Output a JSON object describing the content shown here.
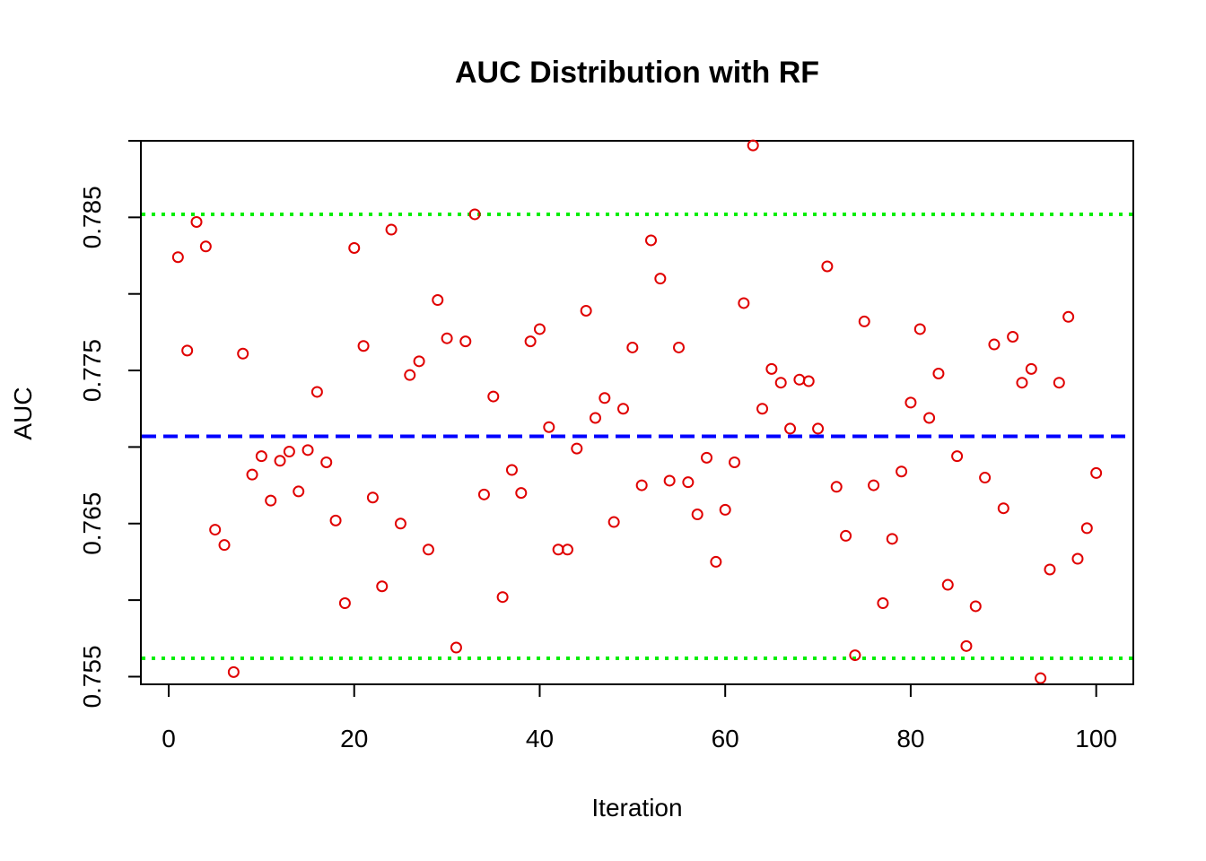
{
  "chart_data": {
    "type": "scatter",
    "title": "AUC Distribution with RF",
    "xlabel": "Iteration",
    "ylabel": "AUC",
    "xlim": [
      -3,
      104
    ],
    "ylim": [
      0.7545,
      0.79
    ],
    "xticks": [
      0,
      20,
      40,
      60,
      80,
      100
    ],
    "xtick_labels": [
      "0",
      "20",
      "40",
      "60",
      "80",
      "100"
    ],
    "yticks": [
      0.755,
      0.76,
      0.765,
      0.77,
      0.775,
      0.78,
      0.785,
      0.79
    ],
    "ytick_labels": [
      "0.755",
      "",
      "0.765",
      "",
      "0.775",
      "",
      "0.785",
      ""
    ],
    "grid": false,
    "point_color": "#e00000",
    "x": [
      1,
      2,
      3,
      4,
      5,
      6,
      7,
      8,
      9,
      10,
      11,
      12,
      13,
      14,
      15,
      16,
      17,
      18,
      19,
      20,
      21,
      22,
      23,
      24,
      25,
      26,
      27,
      28,
      29,
      30,
      31,
      32,
      33,
      34,
      35,
      36,
      37,
      38,
      39,
      40,
      41,
      42,
      43,
      44,
      45,
      46,
      47,
      48,
      49,
      50,
      51,
      52,
      53,
      54,
      55,
      56,
      57,
      58,
      59,
      60,
      61,
      62,
      63,
      64,
      65,
      66,
      67,
      68,
      69,
      70,
      71,
      72,
      73,
      74,
      75,
      76,
      77,
      78,
      79,
      80,
      81,
      82,
      83,
      84,
      85,
      86,
      87,
      88,
      89,
      90,
      91,
      92,
      93,
      94,
      95,
      96,
      97,
      98,
      99,
      100
    ],
    "y": [
      0.7824,
      0.7763,
      0.7847,
      0.7831,
      0.7646,
      0.7636,
      0.7553,
      0.7761,
      0.7682,
      0.7694,
      0.7665,
      0.7691,
      0.7697,
      0.7671,
      0.7698,
      0.7736,
      0.769,
      0.7652,
      0.7598,
      0.783,
      0.7766,
      0.7667,
      0.7609,
      0.7842,
      0.765,
      0.7747,
      0.7756,
      0.7633,
      0.7796,
      0.7771,
      0.7569,
      0.7769,
      0.7852,
      0.7669,
      0.7733,
      0.7602,
      0.7685,
      0.767,
      0.7769,
      0.7777,
      0.7713,
      0.7633,
      0.7633,
      0.7699,
      0.7789,
      0.7719,
      0.7732,
      0.7651,
      0.7725,
      0.7765,
      0.7675,
      0.7835,
      0.781,
      0.7678,
      0.7765,
      0.7677,
      0.7656,
      0.7693,
      0.7625,
      0.7659,
      0.769,
      0.7794,
      0.7897,
      0.7725,
      0.7751,
      0.7742,
      0.7712,
      0.7744,
      0.7743,
      0.7712,
      0.7818,
      0.7674,
      0.7642,
      0.7564,
      0.7782,
      0.7675,
      0.7598,
      0.764,
      0.7684,
      0.7729,
      0.7777,
      0.7719,
      0.7748,
      0.761,
      0.7694,
      0.757,
      0.7596,
      0.768,
      0.7767,
      0.766,
      0.7772,
      0.7742,
      0.7751,
      0.7549,
      0.762,
      0.7742,
      0.7785,
      0.7627,
      0.7647,
      0.7683
    ],
    "hlines": [
      {
        "y": 0.7852,
        "style": "dotted",
        "color": "#00ee00"
      },
      {
        "y": 0.7707,
        "style": "dashed",
        "color": "#0000ff"
      },
      {
        "y": 0.7562,
        "style": "dotted",
        "color": "#00ee00"
      }
    ]
  }
}
